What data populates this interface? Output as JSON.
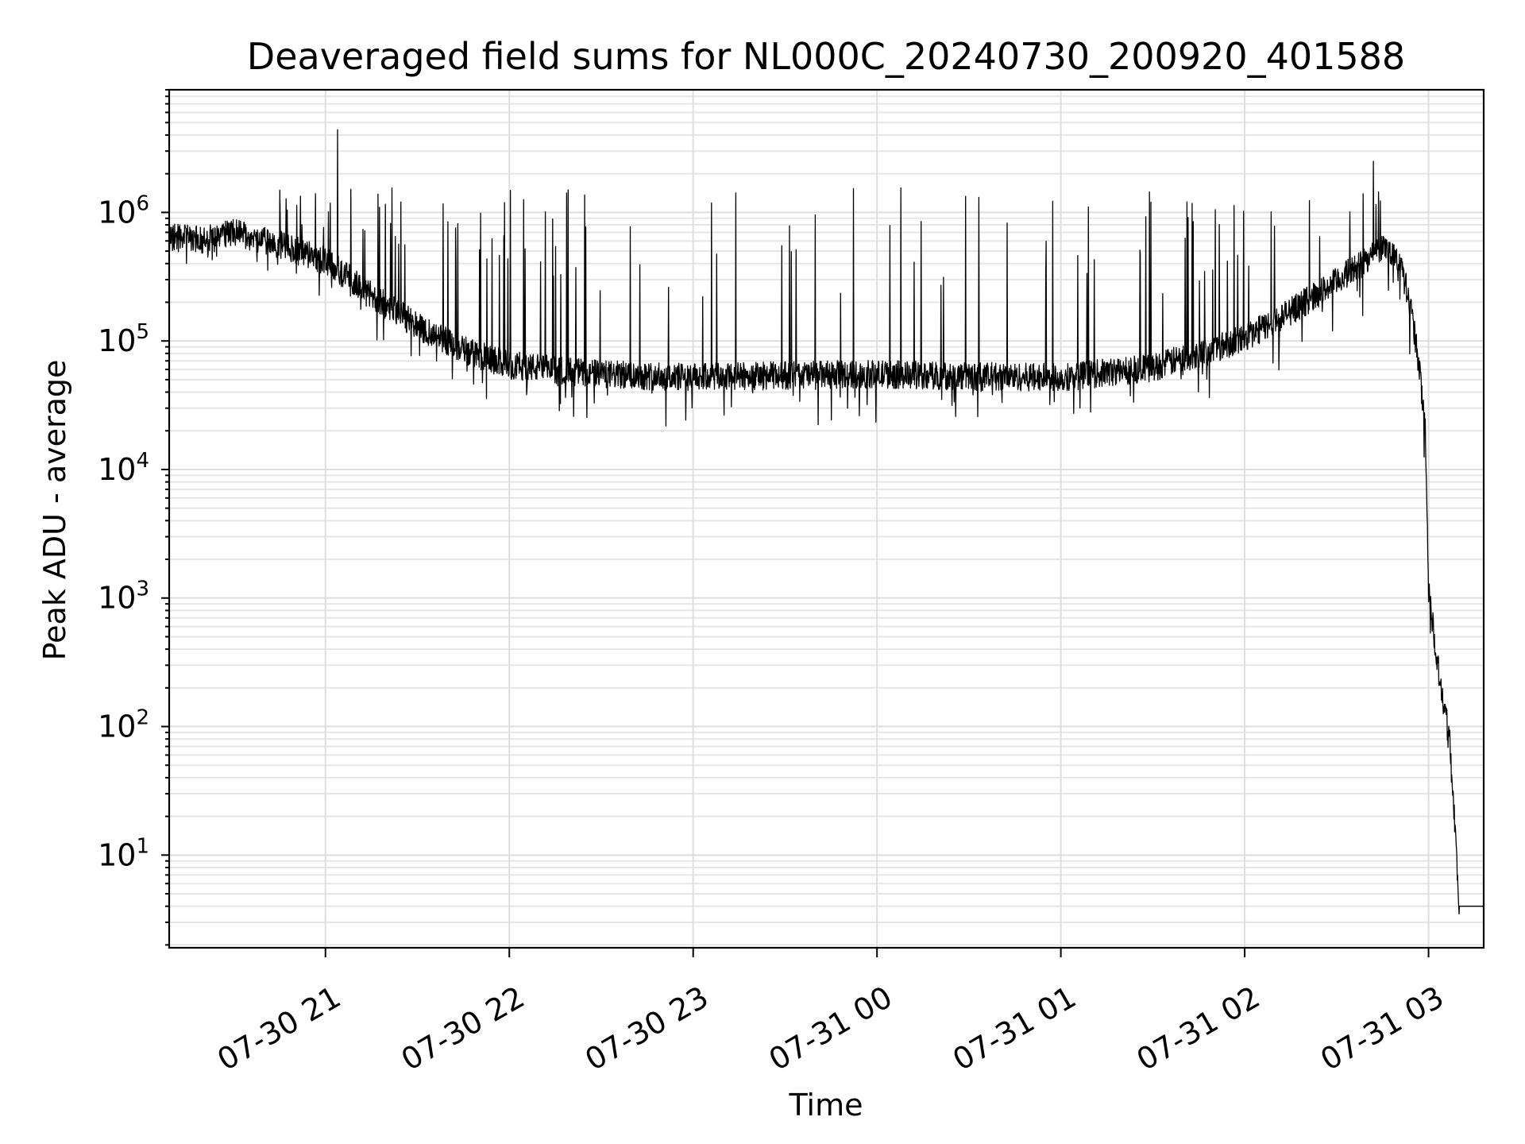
{
  "chart_data": {
    "type": "line",
    "title": "Deaveraged field sums for NL000C_20240730_200920_401588",
    "xlabel": "Time",
    "ylabel": "Peak ADU - average",
    "yscale": "log",
    "ylim": [
      1.9,
      9000000
    ],
    "xlim": [
      "07-30 20:09",
      "07-31 03:18"
    ],
    "x_ticks": [
      "07-30 21",
      "07-30 22",
      "07-30 23",
      "07-31 00",
      "07-31 01",
      "07-31 02",
      "07-31 03"
    ],
    "y_ticks": [
      {
        "base": "10",
        "exp": "1",
        "value": 10
      },
      {
        "base": "10",
        "exp": "2",
        "value": 100
      },
      {
        "base": "10",
        "exp": "3",
        "value": 1000
      },
      {
        "base": "10",
        "exp": "4",
        "value": 10000
      },
      {
        "base": "10",
        "exp": "5",
        "value": 100000
      },
      {
        "base": "10",
        "exp": "6",
        "value": 1000000
      }
    ],
    "grid": "major and minor on both axes",
    "line_color": "#000000",
    "series": [
      {
        "values_description_baseline": [
          {
            "x": "07-30 20:09",
            "y": 650000
          },
          {
            "x": "07-30 20:20",
            "y": 600000
          },
          {
            "x": "07-30 20:30",
            "y": 700000
          },
          {
            "x": "07-30 20:45",
            "y": 560000
          },
          {
            "x": "07-30 21:00",
            "y": 420000
          },
          {
            "x": "07-30 21:15",
            "y": 230000
          },
          {
            "x": "07-30 21:30",
            "y": 130000
          },
          {
            "x": "07-30 21:45",
            "y": 85000
          },
          {
            "x": "07-30 22:00",
            "y": 65000
          },
          {
            "x": "07-30 22:30",
            "y": 55000
          },
          {
            "x": "07-30 23:00",
            "y": 52000
          },
          {
            "x": "07-30 23:30",
            "y": 54000
          },
          {
            "x": "07-31 00:00",
            "y": 55000
          },
          {
            "x": "07-31 00:30",
            "y": 53000
          },
          {
            "x": "07-31 01:00",
            "y": 52000
          },
          {
            "x": "07-31 01:30",
            "y": 62000
          },
          {
            "x": "07-31 01:45",
            "y": 80000
          },
          {
            "x": "07-31 02:00",
            "y": 105000
          },
          {
            "x": "07-31 02:15",
            "y": 170000
          },
          {
            "x": "07-31 02:30",
            "y": 290000
          },
          {
            "x": "07-31 02:45",
            "y": 540000
          },
          {
            "x": "07-31 02:50",
            "y": 450000
          },
          {
            "x": "07-31 02:54",
            "y": 200000
          },
          {
            "x": "07-31 02:57",
            "y": 60000
          },
          {
            "x": "07-31 02:59",
            "y": 20000
          },
          {
            "x": "07-31 03:00",
            "y": 1200
          },
          {
            "x": "07-31 03:03",
            "y": 300
          },
          {
            "x": "07-31 03:07",
            "y": 80
          },
          {
            "x": "07-31 03:10",
            "y": 4
          },
          {
            "x": "07-31 03:18",
            "y": 4
          }
        ],
        "spikes": [
          {
            "x": "07-30 21:04",
            "y": 4400000
          },
          {
            "x": "07-31 02:42",
            "y": 2500000
          }
        ],
        "spike_ceiling": 1600000
      }
    ]
  }
}
